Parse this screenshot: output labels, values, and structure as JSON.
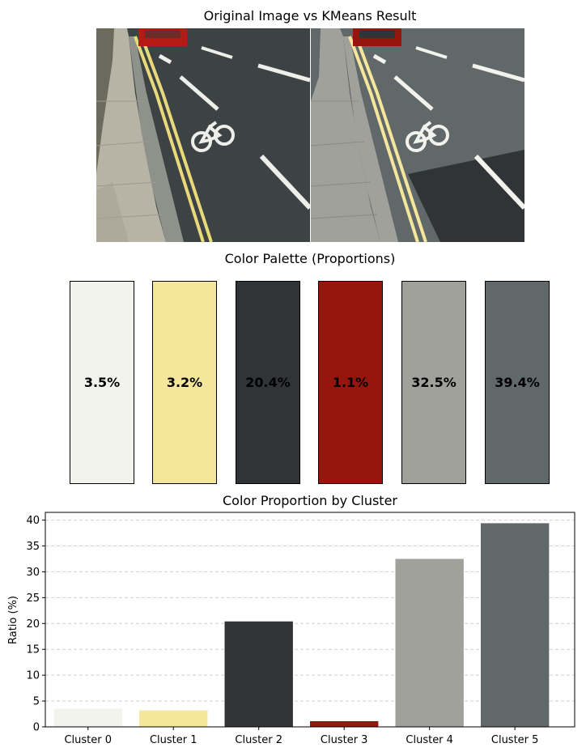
{
  "titles": {
    "images": "Original Image vs KMeans Result",
    "palette": "Color Palette (Proportions)",
    "bars": "Color Proportion by Cluster"
  },
  "palette": [
    {
      "color": "#f2f3ed",
      "label": "3.5%"
    },
    {
      "color": "#f4e79c",
      "label": "3.2%"
    },
    {
      "color": "#313436",
      "label": "20.4%"
    },
    {
      "color": "#96160e",
      "label": "1.1%"
    },
    {
      "color": "#a0a19b",
      "label": "32.5%"
    },
    {
      "color": "#616869",
      "label": "39.4%"
    }
  ],
  "chart_data": {
    "type": "bar",
    "title": "Color Proportion by Cluster",
    "xlabel": "",
    "ylabel": "Ratio (%)",
    "categories": [
      "Cluster 0",
      "Cluster 1",
      "Cluster 2",
      "Cluster 3",
      "Cluster 4",
      "Cluster 5"
    ],
    "values": [
      3.5,
      3.2,
      20.4,
      1.1,
      32.5,
      39.4
    ],
    "colors": [
      "#f2f3ed",
      "#f4e79c",
      "#313436",
      "#96160e",
      "#a0a19b",
      "#616869"
    ],
    "ylim": [
      0,
      41.5
    ],
    "yticks": [
      0,
      5,
      10,
      15,
      20,
      25,
      30,
      35,
      40
    ],
    "grid": "y-dashed",
    "legend": "none"
  }
}
